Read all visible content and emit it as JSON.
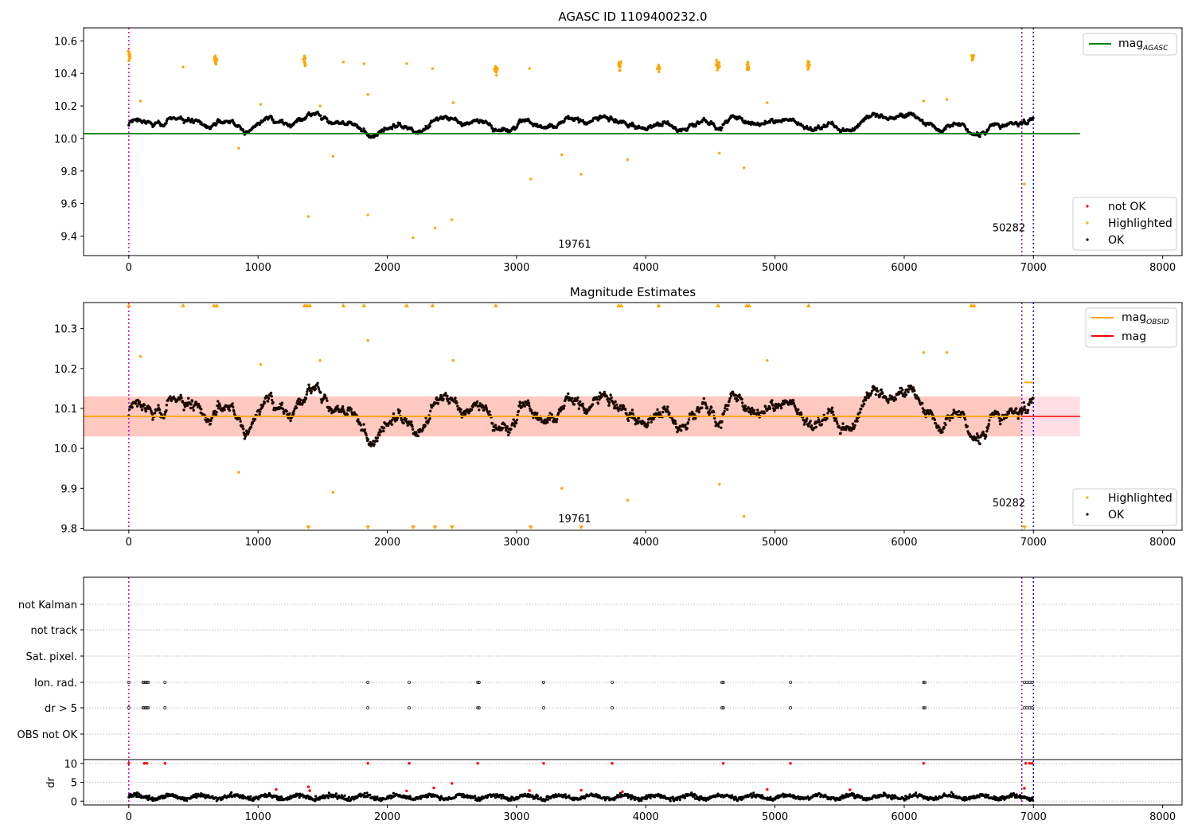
{
  "chart_data": [
    {
      "type": "scatter",
      "title": "AGASC ID 1109400232.0",
      "xlim": [
        -350,
        8150
      ],
      "ylim": [
        9.28,
        10.68
      ],
      "xticks": [
        0,
        1000,
        2000,
        3000,
        4000,
        5000,
        6000,
        7000,
        8000
      ],
      "xtick_labels": [
        "0",
        "1000",
        "2000",
        "3000",
        "4000",
        "5000",
        "6000",
        "7000",
        "8000"
      ],
      "yticks": [
        9.4,
        9.6,
        9.8,
        10.0,
        10.2,
        10.4,
        10.6
      ],
      "ytick_labels": [
        "9.4",
        "9.6",
        "9.8",
        "10.0",
        "10.2",
        "10.4",
        "10.6"
      ],
      "agasc_mag": 10.03,
      "vlines": [
        {
          "x": 0,
          "color": "#cc00cc"
        },
        {
          "x": 6910,
          "color": "#800080"
        },
        {
          "x": 7000,
          "color": "#0000cc"
        }
      ],
      "annotations": [
        {
          "text": "19761",
          "x": 3450,
          "y": 9.33
        },
        {
          "text": "50282",
          "x": 6810,
          "y": 9.43
        }
      ],
      "legend_upper": {
        "label": "mag",
        "subscript": "AGASC",
        "color": "#008000",
        "placement": "upper-right"
      },
      "legend_lower": [
        {
          "label": "not OK",
          "color": "#ff0000"
        },
        {
          "label": "Highlighted",
          "color": "#ffa500"
        },
        {
          "label": "OK",
          "color": "#000000"
        }
      ],
      "series": [
        {
          "name": "OK",
          "color": "#000000",
          "description_values": "dense band of ~1500 points between 9.97 and 10.22"
        },
        {
          "name": "Highlighted",
          "color": "#ffa500",
          "clusters": [
            [
              0,
              10.52
            ],
            [
              670,
              10.48
            ],
            [
              1360,
              10.47
            ],
            [
              2840,
              10.42
            ],
            [
              3800,
              10.45
            ],
            [
              4100,
              10.43
            ],
            [
              4560,
              10.45
            ],
            [
              4790,
              10.44
            ],
            [
              5260,
              10.46
            ],
            [
              6530,
              10.5
            ]
          ],
          "points": [
            [
              90,
              10.23
            ],
            [
              420,
              10.44
            ],
            [
              850,
              9.94
            ],
            [
              1020,
              10.21
            ],
            [
              1390,
              9.52
            ],
            [
              1480,
              10.2
            ],
            [
              1580,
              9.89
            ],
            [
              1660,
              10.47
            ],
            [
              1820,
              10.46
            ],
            [
              1850,
              10.27
            ],
            [
              1850,
              9.53
            ],
            [
              2150,
              10.46
            ],
            [
              2200,
              9.39
            ],
            [
              2350,
              10.43
            ],
            [
              2370,
              9.45
            ],
            [
              2500,
              9.5
            ],
            [
              2510,
              10.22
            ],
            [
              3100,
              10.43
            ],
            [
              3110,
              9.75
            ],
            [
              3350,
              9.9
            ],
            [
              3500,
              9.78
            ],
            [
              3860,
              9.87
            ],
            [
              4570,
              9.91
            ],
            [
              4760,
              9.82
            ],
            [
              4940,
              10.22
            ],
            [
              6150,
              10.23
            ],
            [
              6330,
              10.24
            ],
            [
              6930,
              9.72
            ]
          ]
        }
      ]
    },
    {
      "type": "scatter",
      "title": "Magnitude Estimates",
      "xlim": [
        -350,
        8150
      ],
      "ylim": [
        9.795,
        10.365
      ],
      "xticks": [
        0,
        1000,
        2000,
        3000,
        4000,
        5000,
        6000,
        7000,
        8000
      ],
      "xtick_labels": [
        "0",
        "1000",
        "2000",
        "3000",
        "4000",
        "5000",
        "6000",
        "7000",
        "8000"
      ],
      "yticks": [
        9.8,
        9.9,
        10.0,
        10.1,
        10.2,
        10.3
      ],
      "ytick_labels": [
        "9.8",
        "9.9",
        "10.0",
        "10.1",
        "10.2",
        "10.3"
      ],
      "mag": 10.08,
      "mag_band": [
        10.03,
        10.13
      ],
      "mag_obsid": [
        {
          "x0": -350,
          "x1": 6910,
          "y": 10.08
        },
        {
          "x0": 6930,
          "x1": 7000,
          "y": 10.165
        }
      ],
      "annotations": [
        {
          "text": "19761",
          "x": 3450,
          "y": 9.815
        },
        {
          "text": "50282",
          "x": 6810,
          "y": 9.855
        }
      ],
      "legend_upper": [
        {
          "label": "mag",
          "subscript": "OBSID",
          "color": "#ffa500"
        },
        {
          "label": "mag",
          "color": "#ff0000"
        }
      ],
      "legend_lower": [
        {
          "label": "Highlighted",
          "color": "#ffa500"
        },
        {
          "label": "OK",
          "color": "#000000"
        }
      ],
      "series": [
        {
          "name": "OK",
          "color": "#000000",
          "description_values": "dense band of ~1500 points between 9.96 and 10.22"
        },
        {
          "name": "Highlighted",
          "color": "#ffa500",
          "points": [
            [
              90,
              10.23
            ],
            [
              850,
              9.94
            ],
            [
              1020,
              10.21
            ],
            [
              1480,
              10.22
            ],
            [
              1580,
              9.89
            ],
            [
              1850,
              10.27
            ],
            [
              2510,
              10.22
            ],
            [
              3350,
              9.9
            ],
            [
              3860,
              9.87
            ],
            [
              4570,
              9.91
            ],
            [
              4760,
              9.83
            ],
            [
              4940,
              10.22
            ],
            [
              6150,
              10.24
            ],
            [
              6330,
              10.24
            ]
          ],
          "clipped_top_x": [
            0,
            420,
            660,
            680,
            1360,
            1380,
            1400,
            1660,
            1820,
            2150,
            2350,
            2840,
            3790,
            3810,
            4100,
            4560,
            4780,
            4800,
            5260,
            6520,
            6540
          ],
          "clipped_bottom_x": [
            1390,
            1850,
            2200,
            2370,
            2500,
            3110,
            3500,
            6930
          ]
        }
      ]
    },
    {
      "type": "scatter",
      "title": "",
      "xlim": [
        -350,
        8150
      ],
      "xticks": [
        0,
        1000,
        2000,
        3000,
        4000,
        5000,
        6000,
        7000,
        8000
      ],
      "xtick_labels": [
        "0",
        "1000",
        "2000",
        "3000",
        "4000",
        "5000",
        "6000",
        "7000",
        "8000"
      ],
      "flag_categories": [
        "not Kalman",
        "not track",
        "Sat. pixel.",
        "Ion. rad.",
        "dr > 5",
        "OBS not OK"
      ],
      "flag_points_x": [
        0,
        110,
        120,
        130,
        140,
        150,
        280,
        1850,
        2170,
        2700,
        2710,
        3210,
        3740,
        4590,
        4600,
        5120,
        6150,
        6160,
        6930,
        6950,
        6970,
        6990
      ],
      "dr_yticks": [
        0,
        5,
        10
      ],
      "dr_ytick_labels": [
        "0",
        "5",
        "10"
      ],
      "dr_ylabel": "dr",
      "dr_ylim": [
        -1,
        11
      ],
      "dr_red_points": [
        [
          0,
          10
        ],
        [
          120,
          10
        ],
        [
          140,
          10
        ],
        [
          280,
          10
        ],
        [
          1850,
          10
        ],
        [
          2170,
          10
        ],
        [
          2700,
          10
        ],
        [
          3210,
          10
        ],
        [
          3740,
          10
        ],
        [
          4600,
          10
        ],
        [
          5120,
          10
        ],
        [
          6150,
          10
        ],
        [
          6940,
          10
        ],
        [
          6970,
          10
        ],
        [
          6990,
          10
        ],
        [
          1140,
          3.1
        ],
        [
          1390,
          3.8
        ],
        [
          1400,
          2.8
        ],
        [
          2150,
          2.7
        ],
        [
          2360,
          3.5
        ],
        [
          2500,
          4.7
        ],
        [
          3100,
          2.8
        ],
        [
          3500,
          2.9
        ],
        [
          3820,
          2.5
        ],
        [
          4940,
          3.1
        ],
        [
          5580,
          3.0
        ],
        [
          6930,
          3.4
        ]
      ]
    }
  ]
}
